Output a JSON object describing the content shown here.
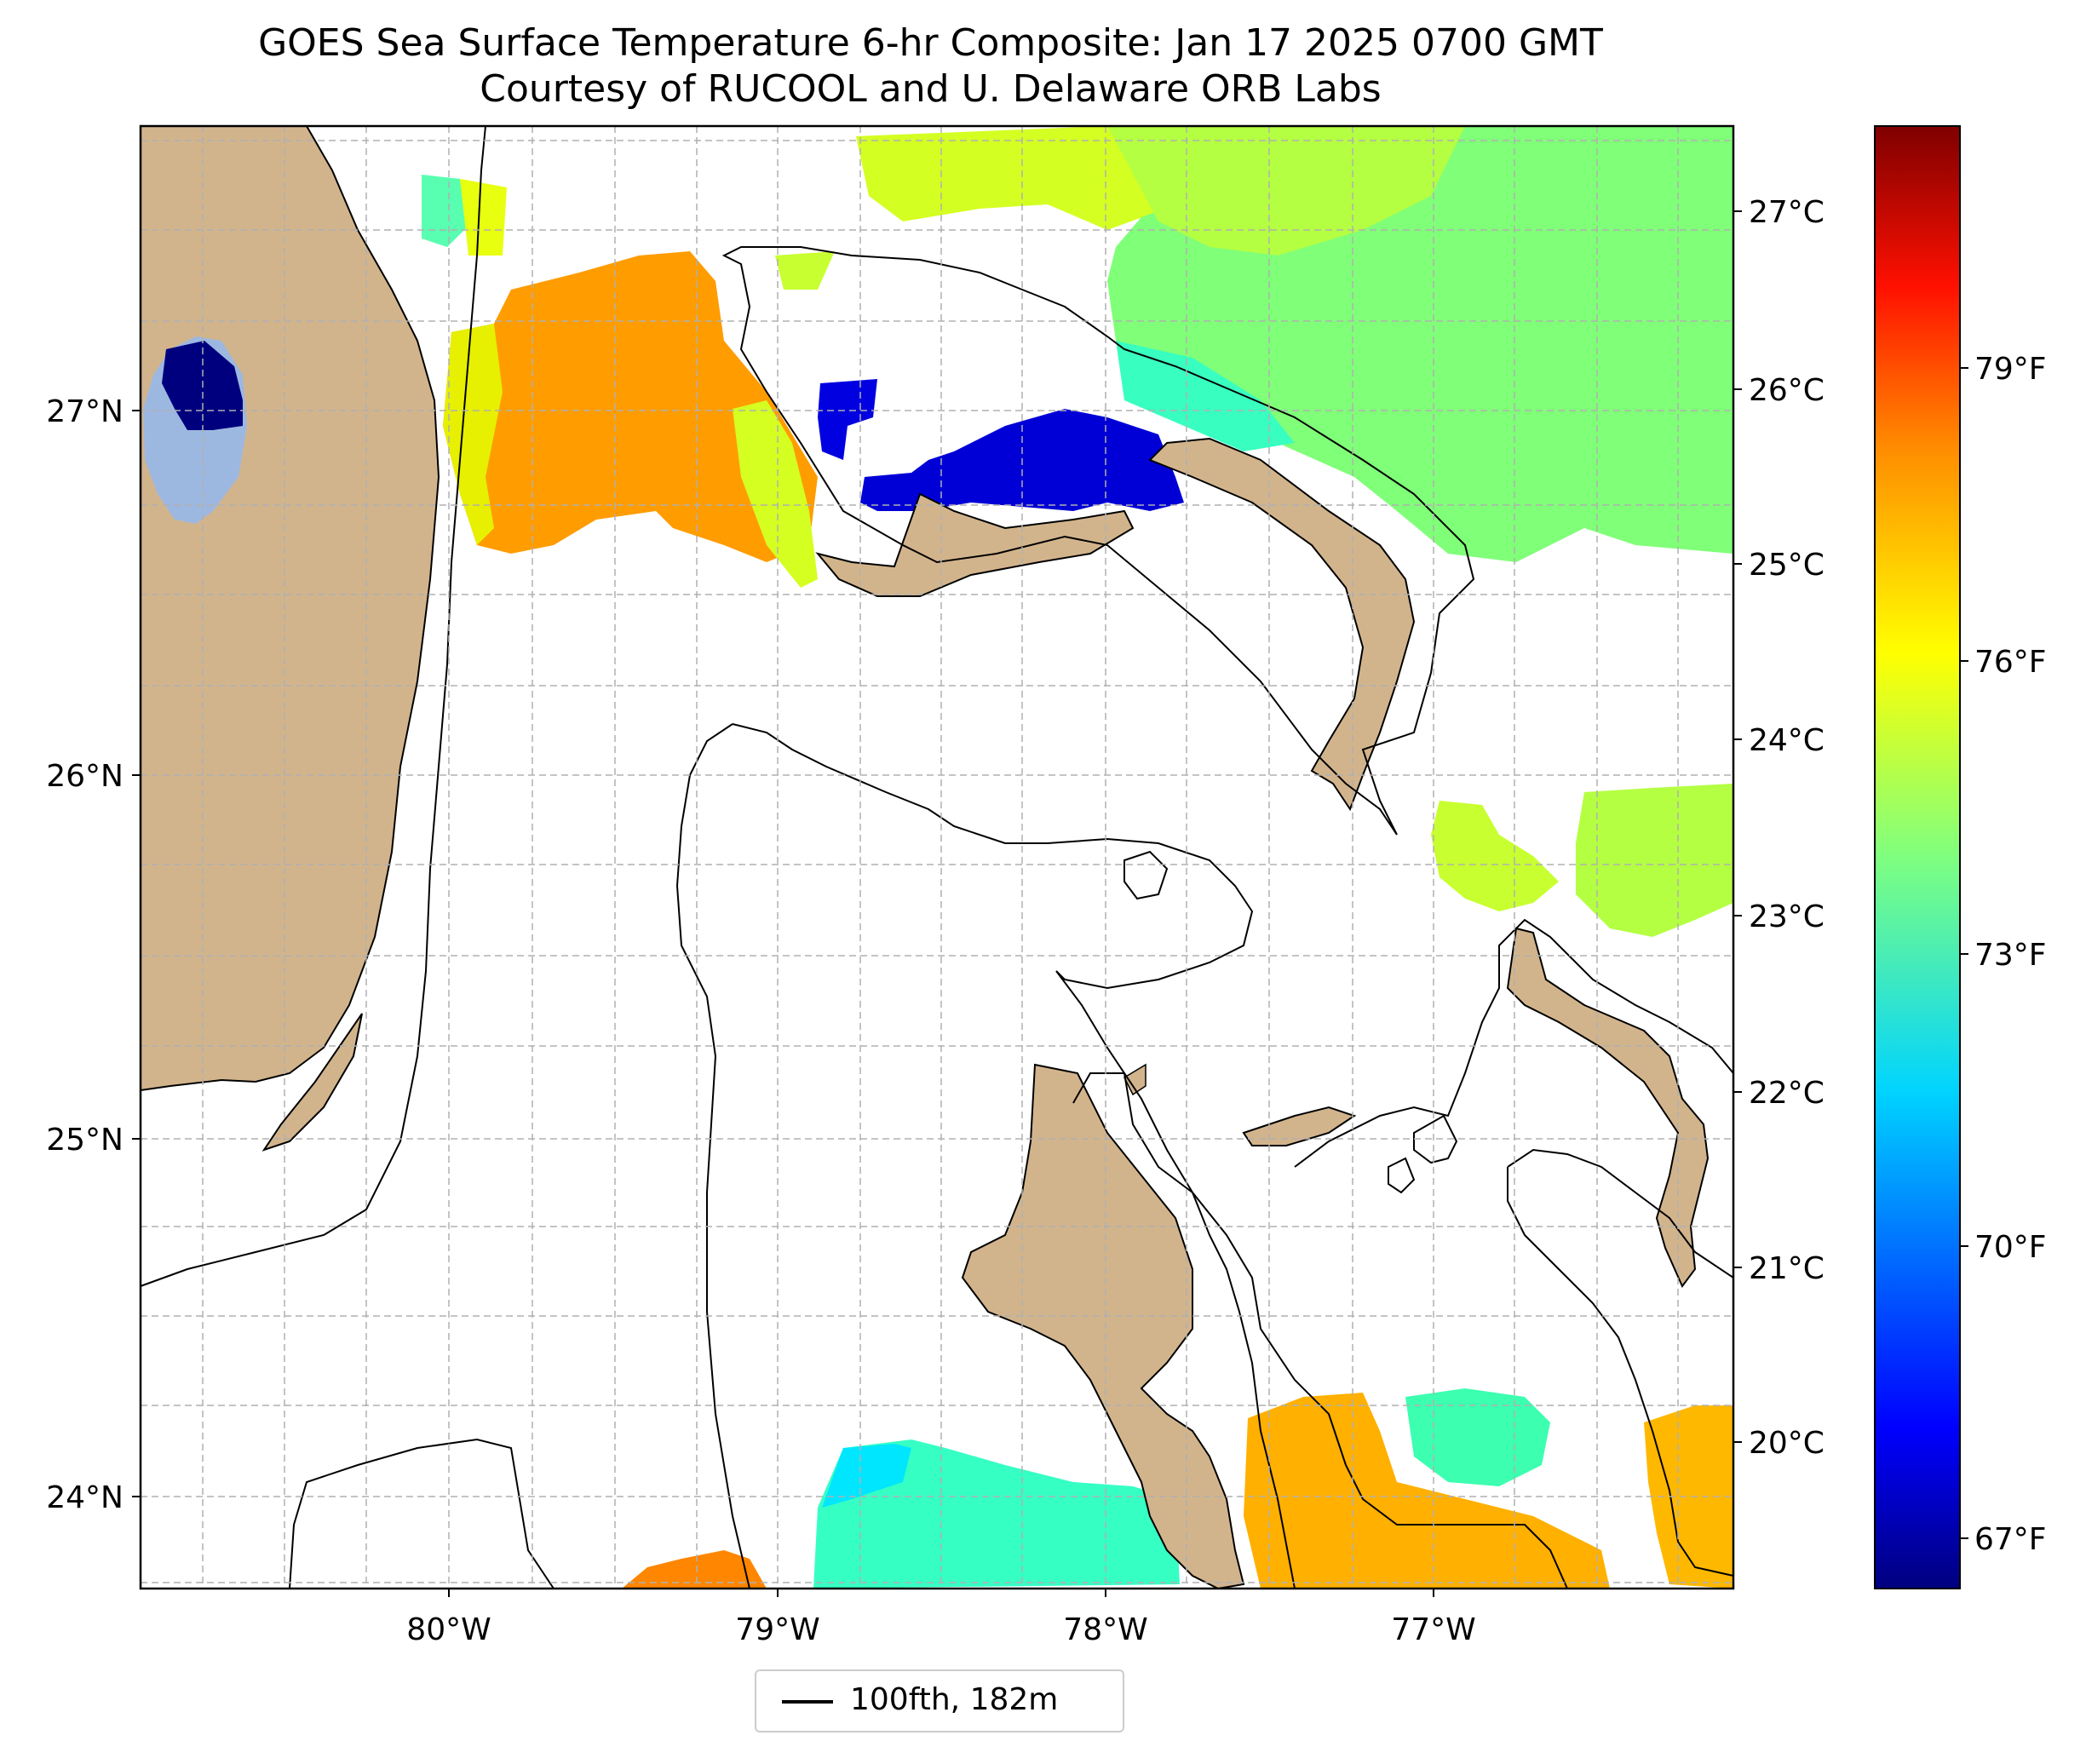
{
  "figure": {
    "title_line1": "GOES Sea Surface Temperature 6-hr Composite: Jan 17 2025 0700 GMT",
    "title_line2": "Courtesy of RUCOOL and U. Delaware ORB Labs"
  },
  "map": {
    "lat_ticks": [
      "27°N",
      "26°N",
      "25°N",
      "24°N"
    ],
    "lon_ticks": [
      "80°W",
      "79°W",
      "78°W",
      "77°W"
    ],
    "land_color": "#d2b48c",
    "lake_color": "#9db8e0",
    "grid": true,
    "grid_style": "dashed"
  },
  "colorbar": {
    "colormap": "jet",
    "celsius_ticks": [
      "27°C",
      "26°C",
      "25°C",
      "24°C",
      "23°C",
      "22°C",
      "21°C",
      "20°C"
    ],
    "fahrenheit_ticks": [
      "79°F",
      "76°F",
      "73°F",
      "70°F",
      "67°F"
    ],
    "colors": [
      "#00007f",
      "#0000ff",
      "#007fff",
      "#00ffff",
      "#7fff7f",
      "#ffff00",
      "#ff7f00",
      "#ff0000",
      "#7f0000"
    ]
  },
  "legend": {
    "label": "100fth, 182m",
    "line_color": "#000000",
    "position": "bottom-center"
  }
}
